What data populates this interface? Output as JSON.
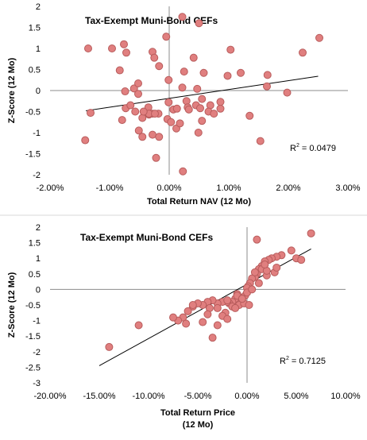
{
  "chart_data": [
    {
      "type": "scatter",
      "title": "Tax-Exempt Muni-Bond CEFs",
      "xlabel": "Total Return NAV (12 Mo)",
      "ylabel": "Z-Score (12 Mo)",
      "xlim": [
        -0.02,
        0.03
      ],
      "ylim": [
        -2,
        2
      ],
      "xticks": [
        "-2.00%",
        "-1.00%",
        "0.00%",
        "1.00%",
        "2.00%",
        "3.00%"
      ],
      "yticks": [
        "2",
        "1.5",
        "1",
        "0.5",
        "0",
        "-0.5",
        "-1",
        "-1.5",
        "-2"
      ],
      "r2_label": "R",
      "r2_exp": "2",
      "r2_value": " = 0.0479",
      "marker_color": "#e07f7f",
      "marker_edge": "#b85c5c",
      "trendline": [
        [
          -0.014,
          -0.48
        ],
        [
          0.025,
          0.34
        ]
      ],
      "x": [
        0.0022,
        0.005,
        -0.0136,
        -0.0096,
        -0.0076,
        -0.0072,
        -0.0028,
        0.0025,
        0.0103,
        0.0252,
        -0.0025,
        -0.0017,
        -0.0005,
        0.0041,
        -0.0083,
        -0.0059,
        -0.0001,
        0.0058,
        0.0098,
        0.012,
        0.0165,
        0.0224,
        0.0198,
        0.0164,
        -0.0074,
        -0.0052,
        0.0022,
        0.0047,
        0.0069,
        0.0055,
        0.0029,
        -0.0132,
        -0.0079,
        -0.0045,
        -0.0034,
        -0.0028,
        -0.0018,
        -0.0001,
        0.0007,
        0.0013,
        0.0031,
        0.0045,
        0.0052,
        0.0066,
        0.0086,
        0.0075,
        0.0086,
        0.0135,
        -0.0073,
        -0.0065,
        -0.0052,
        -0.0035,
        -0.0034,
        -0.0024,
        -0.0003,
        0.0003,
        0.0033,
        0.0055,
        0.0049,
        -0.0141,
        -0.0045,
        -0.0028,
        -0.0017,
        0.0012,
        0.0018,
        0.0153,
        -0.0022,
        0.0023,
        -0.0051,
        -0.0057,
        -0.0043
      ],
      "y": [
        1.75,
        1.6,
        1.0,
        1.0,
        1.1,
        0.9,
        0.92,
        0.45,
        0.97,
        1.25,
        0.78,
        0.58,
        1.28,
        0.78,
        0.48,
        0.05,
        0.25,
        0.42,
        0.35,
        0.42,
        0.37,
        0.9,
        -0.05,
        0.1,
        -0.02,
        0.17,
        0.07,
        0.04,
        -0.35,
        -0.2,
        -0.25,
        -0.53,
        -0.7,
        -0.65,
        -0.57,
        -0.55,
        -0.55,
        -0.28,
        -0.45,
        -0.43,
        -0.4,
        -0.35,
        -0.42,
        -0.5,
        -0.43,
        -0.55,
        -0.27,
        -0.6,
        -0.42,
        -0.35,
        -0.08,
        -0.4,
        -0.55,
        -0.55,
        -0.68,
        -0.75,
        -0.45,
        -0.72,
        -1.0,
        -1.18,
        -1.1,
        -1.05,
        -1.1,
        -0.9,
        -0.78,
        -1.2,
        -1.6,
        -1.92,
        -0.95,
        -0.5,
        -0.5
      ]
    },
    {
      "type": "scatter",
      "title": "Tax-Exempt Muni-Bond CEFs",
      "xlabel": "Total Return Price",
      "xlabel2": "(12 Mo)",
      "ylabel": "Z-Score (12 Mo)",
      "xlim": [
        -0.2,
        0.1
      ],
      "ylim": [
        -3,
        2
      ],
      "xticks": [
        "-20.00%",
        "-15.00%",
        "-10.00%",
        "-5.00%",
        "0.00%",
        "5.00%",
        "10.00%"
      ],
      "yticks": [
        "2",
        "1.5",
        "1",
        "0.5",
        "0",
        "-0.5",
        "-1",
        "-1.5",
        "-2",
        "-2.5",
        "-3"
      ],
      "r2_label": "R",
      "r2_exp": "2",
      "r2_value": " = 0.7125",
      "marker_color": "#e07f7f",
      "marker_edge": "#b85c5c",
      "trendline": [
        [
          -0.15,
          -2.45
        ],
        [
          0.065,
          1.3
        ]
      ],
      "x": [
        0.065,
        0.045,
        0.05,
        0.055,
        0.035,
        0.03,
        0.025,
        0.022,
        0.018,
        0.015,
        0.012,
        0.01,
        0.008,
        0.005,
        0.003,
        0.001,
        0.0,
        -0.002,
        -0.005,
        -0.008,
        -0.01,
        -0.012,
        -0.015,
        -0.018,
        -0.02,
        -0.025,
        -0.03,
        -0.035,
        -0.04,
        -0.045,
        -0.05,
        -0.055,
        -0.06,
        -0.065,
        -0.07,
        -0.02,
        -0.01,
        0.0,
        0.005,
        0.012,
        0.02,
        0.028,
        -0.055,
        -0.038,
        -0.03,
        -0.022,
        -0.015,
        -0.008,
        -0.003,
        0.002,
        -0.025,
        -0.045,
        -0.062,
        -0.075,
        -0.11,
        -0.14,
        -0.03,
        -0.02,
        -0.012,
        -0.005,
        0.008,
        0.015,
        0.02,
        0.03,
        0.01,
        0.018,
        -0.04,
        -0.035
      ],
      "y": [
        1.8,
        1.25,
        1.0,
        0.95,
        1.1,
        1.05,
        1.0,
        0.95,
        0.9,
        0.75,
        0.65,
        0.5,
        0.4,
        0.35,
        0.2,
        0.1,
        0.05,
        -0.2,
        -0.3,
        -0.25,
        -0.15,
        -0.3,
        -0.4,
        -0.45,
        -0.4,
        -0.4,
        -0.45,
        -0.35,
        -0.4,
        -0.5,
        -0.45,
        -0.55,
        -0.7,
        -0.9,
        -1.0,
        -0.35,
        -0.2,
        -0.1,
        0.0,
        0.2,
        0.45,
        0.55,
        -0.5,
        -0.6,
        -0.6,
        -0.75,
        -0.55,
        -0.5,
        -0.45,
        -0.5,
        -0.85,
        -1.05,
        -1.1,
        -0.9,
        -1.15,
        -1.85,
        -1.15,
        -0.95,
        -0.6,
        -0.3,
        0.55,
        0.65,
        0.6,
        0.7,
        1.6,
        0.8,
        -0.8,
        -1.55
      ]
    }
  ]
}
